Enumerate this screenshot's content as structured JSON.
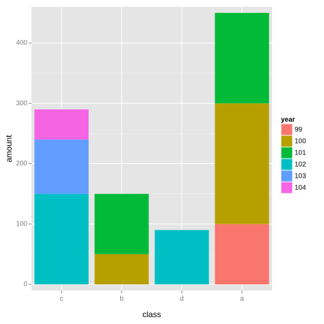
{
  "chart_data": {
    "type": "bar",
    "stacked": true,
    "categories": [
      "c",
      "b",
      "d",
      "a"
    ],
    "xlabel": "class",
    "ylabel": "amount",
    "ylim": [
      0,
      460
    ],
    "yticks": [
      0,
      100,
      200,
      300,
      400
    ],
    "grid": true,
    "legend": {
      "title": "year",
      "placement": "right"
    },
    "series": [
      {
        "name": "99",
        "color": "#F8766D",
        "values": [
          0,
          0,
          0,
          100
        ]
      },
      {
        "name": "100",
        "color": "#B79F00",
        "values": [
          0,
          50,
          0,
          200
        ]
      },
      {
        "name": "101",
        "color": "#00BA38",
        "values": [
          0,
          100,
          0,
          150
        ]
      },
      {
        "name": "102",
        "color": "#00BFC4",
        "values": [
          150,
          0,
          90,
          0
        ]
      },
      {
        "name": "103",
        "color": "#619CFF",
        "values": [
          90,
          0,
          0,
          0
        ]
      },
      {
        "name": "104",
        "color": "#F564E3",
        "values": [
          50,
          0,
          0,
          0
        ]
      }
    ],
    "panel_background": "#E5E5E5",
    "grid_color": "#FFFFFF"
  }
}
